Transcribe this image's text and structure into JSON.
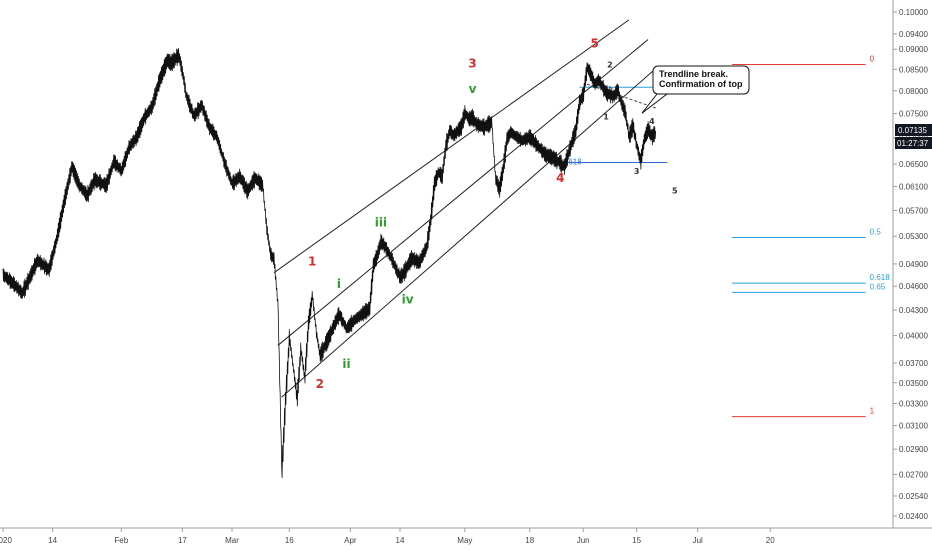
{
  "chart_data": {
    "type": "line",
    "title": "",
    "xlabel": "",
    "ylabel": "",
    "ylim": [
      0.0235,
      0.1025
    ],
    "grid": false,
    "price_label": "0.07135",
    "countdown_label": "01:27:37",
    "y_ticks": [
      "0.10000",
      "0.09400",
      "0.09000",
      "0.08500",
      "0.08000",
      "0.07500",
      "0.07000",
      "0.06500",
      "0.06100",
      "0.05700",
      "0.05300",
      "0.04900",
      "0.04600",
      "0.04300",
      "0.04000",
      "0.03700",
      "0.03500",
      "0.03300",
      "0.03100",
      "0.02900",
      "0.02700",
      "0.02540",
      "0.02400"
    ],
    "y_tick_values": [
      0.1,
      0.094,
      0.09,
      0.085,
      0.08,
      0.075,
      0.07,
      0.065,
      0.061,
      0.057,
      0.053,
      0.049,
      0.046,
      0.043,
      0.04,
      0.037,
      0.035,
      0.033,
      0.031,
      0.029,
      0.027,
      0.0254,
      0.024
    ],
    "x_ticks": [
      {
        "label": "2020",
        "day": 0
      },
      {
        "label": "14",
        "day": 13
      },
      {
        "label": "Feb",
        "day": 31
      },
      {
        "label": "17",
        "day": 47
      },
      {
        "label": "Mar",
        "day": 60
      },
      {
        "label": "16",
        "day": 75
      },
      {
        "label": "Apr",
        "day": 91
      },
      {
        "label": "14",
        "day": 104
      },
      {
        "label": "May",
        "day": 121
      },
      {
        "label": "18",
        "day": 138
      },
      {
        "label": "Jun",
        "day": 152
      },
      {
        "label": "15",
        "day": 166
      },
      {
        "label": "Jul",
        "day": 182
      },
      {
        "label": "20",
        "day": 201
      }
    ],
    "series": [
      {
        "values": [
          [
            0,
            0.0475
          ],
          [
            3,
            0.0462
          ],
          [
            5,
            0.0451
          ],
          [
            7,
            0.0472
          ],
          [
            9,
            0.0495
          ],
          [
            12,
            0.0482
          ],
          [
            14,
            0.0525
          ],
          [
            16,
            0.0585
          ],
          [
            18,
            0.0645
          ],
          [
            20,
            0.0612
          ],
          [
            22,
            0.0595
          ],
          [
            24,
            0.0622
          ],
          [
            27,
            0.0612
          ],
          [
            29,
            0.0655
          ],
          [
            31,
            0.0638
          ],
          [
            33,
            0.0682
          ],
          [
            35,
            0.0702
          ],
          [
            37,
            0.0742
          ],
          [
            39,
            0.0765
          ],
          [
            41,
            0.0825
          ],
          [
            43,
            0.0872
          ],
          [
            44,
            0.0865
          ],
          [
            46,
            0.0885
          ],
          [
            47,
            0.0842
          ],
          [
            48,
            0.0788
          ],
          [
            50,
            0.0745
          ],
          [
            52,
            0.0768
          ],
          [
            54,
            0.0722
          ],
          [
            56,
            0.0702
          ],
          [
            58,
            0.0652
          ],
          [
            60,
            0.0615
          ],
          [
            62,
            0.0628
          ],
          [
            64,
            0.0602
          ],
          [
            66,
            0.0625
          ],
          [
            68,
            0.0612
          ],
          [
            69,
            0.0545
          ],
          [
            70,
            0.0505
          ],
          [
            71,
            0.0495
          ],
          [
            72,
            0.0435
          ],
          [
            73,
            0.0272
          ],
          [
            74,
            0.0335
          ],
          [
            75,
            0.0398
          ],
          [
            76,
            0.0365
          ],
          [
            77,
            0.0335
          ],
          [
            78,
            0.0385
          ],
          [
            79,
            0.0355
          ],
          [
            80,
            0.0415
          ],
          [
            81,
            0.0448
          ],
          [
            82,
            0.0405
          ],
          [
            83,
            0.0378
          ],
          [
            85,
            0.0395
          ],
          [
            87,
            0.0415
          ],
          [
            88,
            0.0425
          ],
          [
            90,
            0.0408
          ],
          [
            92,
            0.0418
          ],
          [
            94,
            0.0425
          ],
          [
            96,
            0.0432
          ],
          [
            97,
            0.0488
          ],
          [
            98,
            0.0502
          ],
          [
            99,
            0.0522
          ],
          [
            100,
            0.0515
          ],
          [
            101,
            0.0505
          ],
          [
            102,
            0.0495
          ],
          [
            103,
            0.0482
          ],
          [
            104,
            0.0472
          ],
          [
            105,
            0.0478
          ],
          [
            107,
            0.0498
          ],
          [
            109,
            0.0492
          ],
          [
            111,
            0.0515
          ],
          [
            112,
            0.0555
          ],
          [
            113,
            0.0615
          ],
          [
            114,
            0.0635
          ],
          [
            115,
            0.0628
          ],
          [
            116,
            0.0685
          ],
          [
            117,
            0.0715
          ],
          [
            118,
            0.0705
          ],
          [
            120,
            0.0722
          ],
          [
            121,
            0.0752
          ],
          [
            122,
            0.0738
          ],
          [
            123,
            0.0742
          ],
          [
            124,
            0.0728
          ],
          [
            126,
            0.0722
          ],
          [
            128,
            0.0732
          ],
          [
            129,
            0.0625
          ],
          [
            130,
            0.0605
          ],
          [
            131,
            0.0642
          ],
          [
            132,
            0.0698
          ],
          [
            133,
            0.0712
          ],
          [
            134,
            0.0705
          ],
          [
            136,
            0.0695
          ],
          [
            138,
            0.0702
          ],
          [
            140,
            0.0685
          ],
          [
            142,
            0.0668
          ],
          [
            144,
            0.0662
          ],
          [
            146,
            0.0652
          ],
          [
            147,
            0.0645
          ],
          [
            148,
            0.0668
          ],
          [
            149,
            0.0692
          ],
          [
            150,
            0.0715
          ],
          [
            151,
            0.0775
          ],
          [
            152,
            0.0792
          ],
          [
            153,
            0.0855
          ],
          [
            154,
            0.0838
          ],
          [
            155,
            0.0815
          ],
          [
            156,
            0.0825
          ],
          [
            158,
            0.0795
          ],
          [
            160,
            0.0788
          ],
          [
            161,
            0.0802
          ],
          [
            162,
            0.0772
          ],
          [
            163,
            0.0752
          ],
          [
            164,
            0.0702
          ],
          [
            165,
            0.0725
          ],
          [
            166,
            0.0685
          ],
          [
            167,
            0.0655
          ],
          [
            168,
            0.0698
          ],
          [
            169,
            0.0718
          ],
          [
            170,
            0.0702
          ],
          [
            171,
            0.07135
          ]
        ]
      }
    ],
    "channel_lines": [
      {
        "start": [
          71,
          0.0478
        ],
        "end": [
          164,
          0.0978
        ]
      },
      {
        "start": [
          72,
          0.0389
        ],
        "end": [
          169,
          0.0925
        ]
      },
      {
        "start": [
          73,
          0.0336
        ],
        "end": [
          171,
          0.0852
        ]
      }
    ],
    "trendline_break": {
      "start": [
        153,
        0.0815
      ],
      "end": [
        171,
        0.0762
      ]
    },
    "wave_labels": [
      {
        "text": "1",
        "day": 81,
        "price": 0.0488,
        "color": "#d32f2f"
      },
      {
        "text": "2",
        "day": 83,
        "price": 0.0345,
        "color": "#d32f2f"
      },
      {
        "text": "3",
        "day": 123,
        "price": 0.0855,
        "color": "#d32f2f"
      },
      {
        "text": "4",
        "day": 146,
        "price": 0.0618,
        "color": "#d32f2f"
      },
      {
        "text": "5",
        "day": 155,
        "price": 0.0905,
        "color": "#d32f2f"
      },
      {
        "text": "i",
        "day": 88,
        "price": 0.0458,
        "color": "#2e9e2e"
      },
      {
        "text": "ii",
        "day": 90,
        "price": 0.0365,
        "color": "#2e9e2e"
      },
      {
        "text": "iii",
        "day": 99,
        "price": 0.0545,
        "color": "#2e9e2e"
      },
      {
        "text": "iv",
        "day": 106,
        "price": 0.0438,
        "color": "#2e9e2e"
      },
      {
        "text": "v",
        "day": 123,
        "price": 0.0795,
        "color": "#2e9e2e"
      },
      {
        "text": "1",
        "day": 158,
        "price": 0.0738,
        "color": "#333333"
      },
      {
        "text": "2",
        "day": 159,
        "price": 0.0855,
        "color": "#333333"
      },
      {
        "text": "3",
        "day": 166,
        "price": 0.0632,
        "color": "#333333"
      },
      {
        "text": "4",
        "day": 170,
        "price": 0.0728,
        "color": "#333333"
      },
      {
        "text": "5",
        "day": 176,
        "price": 0.0598,
        "color": "#333333"
      }
    ],
    "horizontal_levels": [
      {
        "label": "0",
        "price": 0.0862,
        "start_day": 191,
        "end_day": 226,
        "color": "#e53935"
      },
      {
        "label": "0.5",
        "price": 0.0528,
        "start_day": 191,
        "end_day": 226,
        "color": "#29a3dc"
      },
      {
        "label": "0.618",
        "price": 0.0464,
        "start_day": 191,
        "end_day": 226,
        "color": "#29a3dc"
      },
      {
        "label": "0.65",
        "price": 0.0452,
        "start_day": 191,
        "end_day": 226,
        "color": "#29a3dc"
      },
      {
        "label": "1",
        "price": 0.0318,
        "start_day": 191,
        "end_day": 226,
        "color": "#e53935"
      }
    ],
    "short_levels": [
      {
        "label": "",
        "price": 0.0808,
        "start_day": 151,
        "end_day": 173,
        "color": "#29a3dc"
      },
      {
        "label": ".618",
        "price": 0.0653,
        "start_day": 147,
        "end_day": 174,
        "color": "#2c6fd1"
      }
    ],
    "callout": {
      "lines": [
        "Trendline break.",
        "Confirmation of top"
      ],
      "anchor_day": 170,
      "anchor_price": 0.079
    }
  }
}
